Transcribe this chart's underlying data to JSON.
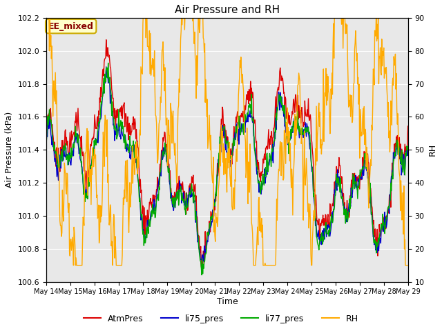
{
  "title": "Air Pressure and RH",
  "xlabel": "Time",
  "ylabel_left": "Air Pressure (kPa)",
  "ylabel_right": "RH",
  "ylim_left": [
    100.6,
    102.2
  ],
  "ylim_right": [
    10,
    90
  ],
  "yticks_left": [
    100.6,
    100.8,
    101.0,
    101.2,
    101.4,
    101.6,
    101.8,
    102.0,
    102.2
  ],
  "yticks_right": [
    10,
    20,
    30,
    40,
    50,
    60,
    70,
    80,
    90
  ],
  "xtick_labels": [
    "May 14",
    "May 15",
    "May 16",
    "May 17",
    "May 18",
    "May 19",
    "May 20",
    "May 21",
    "May 22",
    "May 23",
    "May 24",
    "May 25",
    "May 26",
    "May 27",
    "May 28",
    "May 29"
  ],
  "annotation_text": "EE_mixed",
  "annotation_facecolor": "#ffffcc",
  "annotation_edgecolor": "#ccaa00",
  "annotation_textcolor": "#880000",
  "colors": {
    "AtmPres": "#dd0000",
    "li75_pres": "#0000cc",
    "li77_pres": "#00aa00",
    "RH": "#ffaa00"
  },
  "legend_labels": [
    "AtmPres",
    "li75_pres",
    "li77_pres",
    "RH"
  ],
  "background_color": "#e8e8e8",
  "figure_background": "#ffffff",
  "n_points": 720,
  "time_days": 15
}
